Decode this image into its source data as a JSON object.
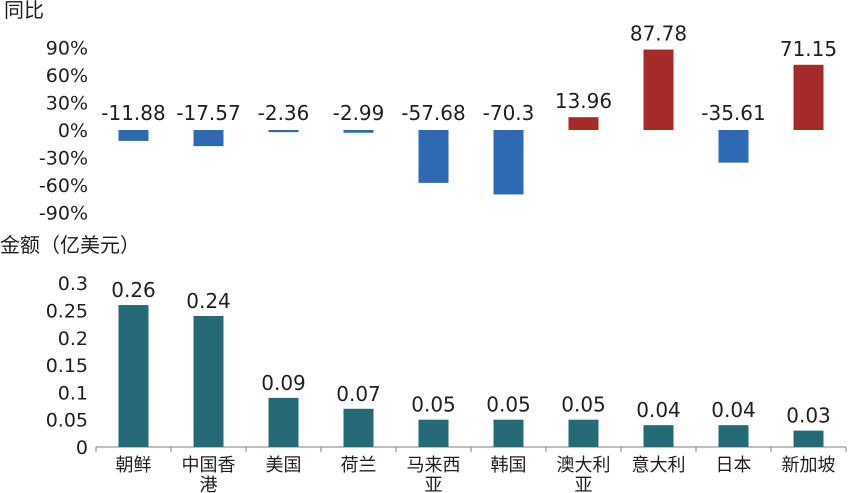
{
  "chart_data": [
    {
      "type": "bar",
      "ylabel": "同比",
      "y_ticks": [
        "90%",
        "60%",
        "30%",
        "0%",
        "-30%",
        "-60%",
        "-90%"
      ],
      "ylim": [
        -90,
        90
      ],
      "categories": [
        "朝鲜",
        "中国香港",
        "美国",
        "荷兰",
        "马来西亚",
        "韩国",
        "澳大利亚",
        "意大利",
        "日本",
        "新加坡"
      ],
      "values": [
        -11.88,
        -17.57,
        -2.36,
        -2.99,
        -57.68,
        -70.3,
        13.96,
        87.78,
        -35.61,
        71.15
      ],
      "value_labels": [
        "-11.88",
        "-17.57",
        "-2.36",
        "-2.99",
        "-57.68",
        "-70.3",
        "13.96",
        "87.78",
        "-35.61",
        "71.15"
      ],
      "colors": {
        "positive": "#a52a2a",
        "negative": "#2e6ab3"
      },
      "grid": false
    },
    {
      "type": "bar",
      "ylabel": "金额（亿美元）",
      "y_ticks": [
        "0.3",
        "0.25",
        "0.2",
        "0.15",
        "0.1",
        "0.05",
        "0"
      ],
      "ylim": [
        0,
        0.3
      ],
      "categories": [
        "朝鲜",
        "中国香港",
        "美国",
        "荷兰",
        "马来西亚",
        "韩国",
        "澳大利亚",
        "意大利",
        "日本",
        "新加坡"
      ],
      "category_lines": [
        [
          "朝鲜"
        ],
        [
          "中国香",
          "港"
        ],
        [
          "美国"
        ],
        [
          "荷兰"
        ],
        [
          "马来西",
          "亚"
        ],
        [
          "韩国"
        ],
        [
          "澳大利",
          "亚"
        ],
        [
          "意大利"
        ],
        [
          "日本"
        ],
        [
          "新加坡"
        ]
      ],
      "values": [
        0.26,
        0.24,
        0.09,
        0.07,
        0.05,
        0.05,
        0.05,
        0.04,
        0.04,
        0.03
      ],
      "value_labels": [
        "0.26",
        "0.24",
        "0.09",
        "0.07",
        "0.05",
        "0.05",
        "0.05",
        "0.04",
        "0.04",
        "0.03"
      ],
      "colors": {
        "bar": "#266a78",
        "axis": "#7f7f7f"
      },
      "grid": false
    }
  ]
}
